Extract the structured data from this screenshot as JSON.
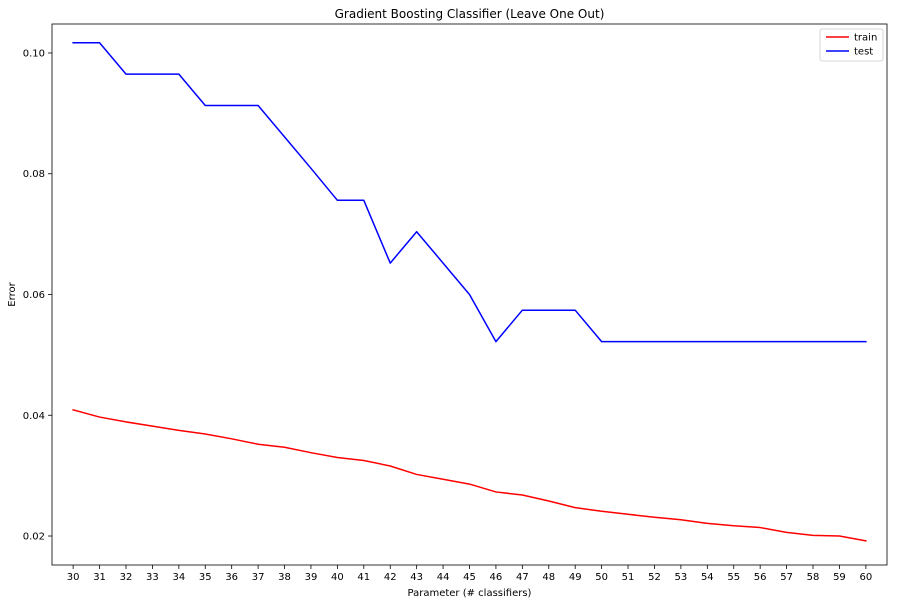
{
  "chart_data": {
    "type": "line",
    "title": "Gradient Boosting Classifier (Leave One Out)",
    "xlabel": "Parameter (# classifiers)",
    "ylabel": "Error",
    "x": [
      30,
      31,
      32,
      33,
      34,
      35,
      36,
      37,
      38,
      39,
      40,
      41,
      42,
      43,
      44,
      45,
      46,
      47,
      48,
      49,
      50,
      51,
      52,
      53,
      54,
      55,
      56,
      57,
      58,
      59,
      60
    ],
    "xlim": [
      29.2,
      60.8
    ],
    "ylim": [
      0.0152,
      0.1048
    ],
    "yticks": [
      0.02,
      0.04,
      0.06,
      0.08,
      0.1
    ],
    "ytick_labels": [
      "0.02",
      "0.04",
      "0.06",
      "0.08",
      "0.10"
    ],
    "grid": false,
    "legend_position": "top-right",
    "series": [
      {
        "name": "train",
        "color": "#ff0000",
        "values": [
          0.0409,
          0.0397,
          0.0389,
          0.0382,
          0.0375,
          0.0369,
          0.0361,
          0.0352,
          0.0347,
          0.0338,
          0.033,
          0.0325,
          0.0316,
          0.0302,
          0.0294,
          0.0286,
          0.0273,
          0.0268,
          0.0258,
          0.0247,
          0.0241,
          0.0236,
          0.0231,
          0.0227,
          0.0221,
          0.0217,
          0.0214,
          0.0206,
          0.0201,
          0.02,
          0.0192
        ]
      },
      {
        "name": "test",
        "color": "#0000ff",
        "values": [
          0.1017,
          0.1017,
          0.0965,
          0.0965,
          0.0965,
          0.0913,
          0.0913,
          0.0913,
          0.0861,
          0.0809,
          0.0756,
          0.0756,
          0.0652,
          0.0704,
          0.0652,
          0.06,
          0.0522,
          0.0574,
          0.0574,
          0.0574,
          0.0522,
          0.0522,
          0.0522,
          0.0522,
          0.0522,
          0.0522,
          0.0522,
          0.0522,
          0.0522,
          0.0522,
          0.0522
        ]
      }
    ]
  }
}
